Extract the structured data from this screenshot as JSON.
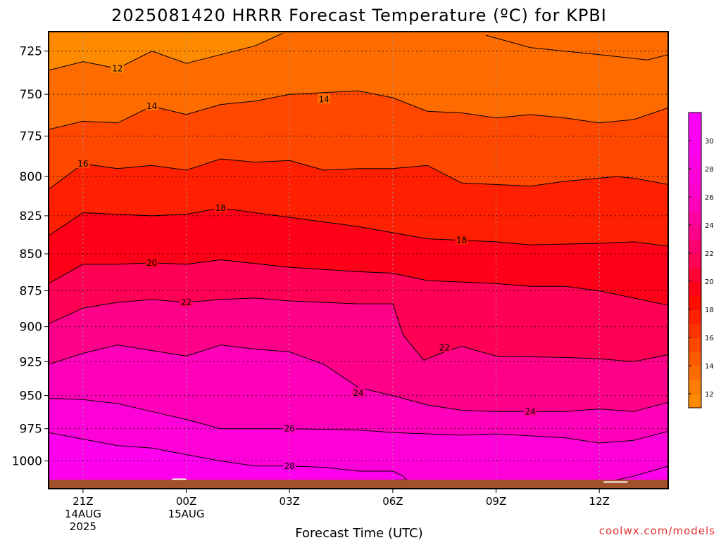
{
  "chart_data": {
    "type": "filled_contour",
    "title": "2025081420 HRRR Forecast Temperature (ºC) for KPBI",
    "xlabel": "Forecast Time (UTC)",
    "ylabel": "",
    "credit": "coolwx.com/models",
    "x_ticks": [
      {
        "label": "21Z",
        "sub": [
          "14AUG",
          "2025"
        ],
        "hour": 0
      },
      {
        "label": "00Z",
        "sub": [
          "15AUG"
        ],
        "hour": 3
      },
      {
        "label": "03Z",
        "sub": [],
        "hour": 6
      },
      {
        "label": "06Z",
        "sub": [],
        "hour": 9
      },
      {
        "label": "09Z",
        "sub": [],
        "hour": 12
      },
      {
        "label": "12Z",
        "sub": [],
        "hour": 15
      }
    ],
    "xlim": [
      -1,
      17
    ],
    "y_ticks": [
      725,
      750,
      775,
      800,
      825,
      850,
      875,
      900,
      925,
      950,
      975,
      1000
    ],
    "ylim": [
      714,
      1022
    ],
    "y_scale": "log-pressure (inverted)",
    "surface_pressure": 1015,
    "colorbar": {
      "labels": [
        12,
        14,
        16,
        18,
        20,
        22,
        24,
        26,
        28,
        30
      ],
      "levels": [
        11,
        12,
        13,
        14,
        15,
        16,
        17,
        18,
        19,
        20,
        21,
        22,
        23,
        24,
        25,
        26,
        27,
        28,
        29,
        30,
        31,
        32
      ],
      "colors": [
        "#fe8a00",
        "#fe7c00",
        "#fe6c00",
        "#fe5a00",
        "#fe4800",
        "#fe3400",
        "#fe2000",
        "#fe0c00",
        "#fe0018",
        "#fe0036",
        "#fe0054",
        "#fe0070",
        "#fe008a",
        "#fe00a2",
        "#fe00ba",
        "#fe00cc",
        "#fe00d8",
        "#fe00e4",
        "#fe00ee",
        "#fe00f6",
        "#fe00fe"
      ]
    },
    "contours": [
      {
        "level": 12,
        "points": [
          [
            -1,
            736
          ],
          [
            0,
            731
          ],
          [
            1,
            735
          ],
          [
            2,
            725
          ],
          [
            3,
            732
          ],
          [
            4,
            727
          ],
          [
            5,
            722
          ],
          [
            5.8,
            715
          ]
        ],
        "labels": [
          [
            1,
            735
          ]
        ]
      },
      {
        "level": 12,
        "points": [
          [
            11.7,
            716
          ],
          [
            13,
            723
          ],
          [
            15,
            727
          ],
          [
            16.4,
            730
          ],
          [
            17,
            727
          ]
        ],
        "labels": []
      },
      {
        "level": 14,
        "points": [
          [
            -1,
            771
          ],
          [
            0,
            766
          ],
          [
            1,
            767
          ],
          [
            2,
            757
          ],
          [
            3,
            762
          ],
          [
            4,
            756
          ],
          [
            5,
            754
          ],
          [
            6,
            750
          ],
          [
            8,
            748
          ],
          [
            9,
            752
          ],
          [
            10,
            760
          ],
          [
            11,
            761
          ],
          [
            12,
            764
          ],
          [
            13,
            762
          ],
          [
            14,
            764
          ],
          [
            15,
            767
          ],
          [
            16,
            765
          ],
          [
            17,
            758
          ]
        ],
        "labels": [
          [
            2,
            757
          ],
          [
            7,
            753
          ]
        ]
      },
      {
        "level": 16,
        "points": [
          [
            -1,
            808
          ],
          [
            0,
            792
          ],
          [
            1,
            795
          ],
          [
            2,
            793
          ],
          [
            3,
            796
          ],
          [
            4,
            789
          ],
          [
            5,
            791
          ],
          [
            6,
            790
          ],
          [
            7,
            796
          ],
          [
            8,
            795
          ],
          [
            9,
            795
          ],
          [
            10,
            793
          ],
          [
            11,
            804
          ],
          [
            12,
            805
          ],
          [
            13,
            806
          ],
          [
            14,
            803
          ],
          [
            15,
            801
          ],
          [
            15.5,
            800
          ],
          [
            16,
            801
          ],
          [
            17,
            805
          ]
        ],
        "labels": [
          [
            0,
            792
          ]
        ]
      },
      {
        "level": 18,
        "points": [
          [
            -1,
            838
          ],
          [
            0,
            823
          ],
          [
            1,
            824
          ],
          [
            2,
            825
          ],
          [
            3,
            824
          ],
          [
            4,
            820
          ],
          [
            6,
            826
          ],
          [
            8,
            832
          ],
          [
            10,
            840
          ],
          [
            11,
            841
          ],
          [
            12,
            842
          ],
          [
            13,
            844
          ],
          [
            15,
            843
          ],
          [
            16,
            842
          ],
          [
            17,
            845
          ]
        ],
        "labels": [
          [
            4,
            820
          ],
          [
            11,
            841
          ]
        ]
      },
      {
        "level": 20,
        "points": [
          [
            -1,
            870
          ],
          [
            0,
            857
          ],
          [
            1,
            857
          ],
          [
            2,
            856
          ],
          [
            3,
            857
          ],
          [
            4,
            854
          ],
          [
            6,
            859
          ],
          [
            8,
            862
          ],
          [
            9,
            863
          ],
          [
            10,
            868
          ],
          [
            11,
            869
          ],
          [
            12,
            870
          ],
          [
            13,
            872
          ],
          [
            14,
            872
          ],
          [
            15,
            875
          ],
          [
            16,
            880
          ],
          [
            17,
            885
          ]
        ],
        "labels": [
          [
            2,
            856
          ]
        ]
      },
      {
        "level": 22,
        "points": [
          [
            -1,
            898
          ],
          [
            0,
            887
          ],
          [
            1,
            883
          ],
          [
            2,
            881
          ],
          [
            3,
            883
          ],
          [
            4,
            881
          ],
          [
            5,
            880
          ],
          [
            6,
            882
          ],
          [
            8,
            884
          ],
          [
            9,
            884
          ],
          [
            9.3,
            906
          ],
          [
            9.9,
            924
          ],
          [
            10.5,
            918
          ],
          [
            11,
            914
          ],
          [
            12,
            921
          ],
          [
            14,
            922
          ],
          [
            15,
            923
          ],
          [
            16,
            925
          ],
          [
            17,
            920
          ]
        ],
        "labels": [
          [
            3,
            883
          ],
          [
            10.5,
            915
          ]
        ]
      },
      {
        "level": 24,
        "points": [
          [
            -1,
            927
          ],
          [
            0,
            919
          ],
          [
            1,
            913
          ],
          [
            2,
            917
          ],
          [
            3,
            921
          ],
          [
            4,
            913
          ],
          [
            5,
            916
          ],
          [
            6,
            918
          ],
          [
            7,
            927
          ],
          [
            8,
            944
          ],
          [
            9,
            950
          ],
          [
            10,
            957
          ],
          [
            11,
            961
          ],
          [
            12,
            962
          ],
          [
            14,
            962
          ],
          [
            15,
            960
          ],
          [
            16,
            962
          ],
          [
            17,
            955
          ]
        ],
        "labels": [
          [
            8,
            948
          ],
          [
            13,
            962
          ]
        ]
      },
      {
        "level": 26,
        "points": [
          [
            -1,
            952
          ],
          [
            0,
            953
          ],
          [
            1,
            956
          ],
          [
            2,
            962
          ],
          [
            3,
            968
          ],
          [
            4,
            975
          ],
          [
            5,
            975
          ],
          [
            6,
            975
          ],
          [
            8,
            976
          ],
          [
            9,
            978
          ],
          [
            11,
            980
          ],
          [
            12,
            979
          ],
          [
            14,
            982
          ],
          [
            15,
            986
          ],
          [
            16,
            984
          ],
          [
            17,
            977
          ]
        ],
        "labels": [
          [
            6,
            975
          ]
        ]
      },
      {
        "level": 28,
        "points": [
          [
            -1,
            978
          ],
          [
            0,
            983
          ],
          [
            1,
            988
          ],
          [
            2,
            990
          ],
          [
            3,
            995
          ],
          [
            4,
            1000
          ],
          [
            5,
            1004
          ],
          [
            6,
            1004
          ],
          [
            7,
            1005
          ],
          [
            8,
            1008
          ],
          [
            9,
            1008
          ],
          [
            9.3,
            1012
          ],
          [
            9.4,
            1015
          ]
        ],
        "labels": [
          [
            6,
            1004
          ]
        ]
      },
      {
        "level": 28,
        "points": [
          [
            7.9,
            1016
          ],
          [
            9.4,
            1015
          ]
        ],
        "labels": []
      },
      {
        "level": 28,
        "points": [
          [
            15.5,
            1015
          ],
          [
            16,
            1012
          ],
          [
            17,
            1004
          ]
        ],
        "labels": []
      }
    ],
    "grid": true
  }
}
